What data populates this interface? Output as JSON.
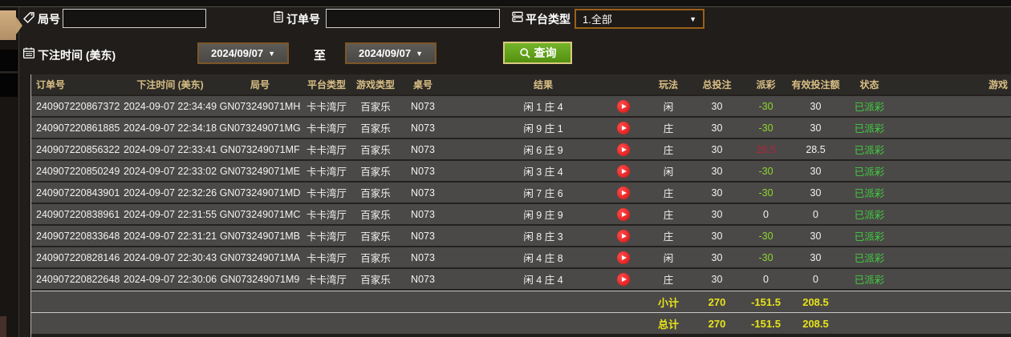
{
  "filters": {
    "round_label": "局号",
    "round_value": "",
    "order_label": "订单号",
    "order_value": "",
    "platform_label": "平台类型",
    "platform_value": "1.全部",
    "bet_time_label": "下注时间 (美东)",
    "date_from": "2024/09/07",
    "to_label": "至",
    "date_to": "2024/09/07",
    "query_label": "查询"
  },
  "table": {
    "headers": [
      "订单号",
      "下注时间 (美东)",
      "局号",
      "平台类型",
      "游戏类型",
      "桌号",
      "结果",
      "玩法",
      "总投注",
      "派彩",
      "有效投注额",
      "状态",
      "游戏"
    ],
    "rows": [
      {
        "order_no": "240907220867372",
        "bet_time": "2024-09-07 22:34:49",
        "round_no": "GN073249071MH",
        "platform": "卡卡湾厅",
        "game_type": "百家乐",
        "table_no": "N073",
        "result": "闲 1 庄 4",
        "play": "闲",
        "total_bet": "30",
        "payout": "-30",
        "payout_color": "green",
        "valid_bet": "30",
        "status": "已派彩"
      },
      {
        "order_no": "240907220861885",
        "bet_time": "2024-09-07 22:34:18",
        "round_no": "GN073249071MG",
        "platform": "卡卡湾厅",
        "game_type": "百家乐",
        "table_no": "N073",
        "result": "闲 9 庄 1",
        "play": "庄",
        "total_bet": "30",
        "payout": "-30",
        "payout_color": "green",
        "valid_bet": "30",
        "status": "已派彩"
      },
      {
        "order_no": "240907220856322",
        "bet_time": "2024-09-07 22:33:41",
        "round_no": "GN073249071MF",
        "platform": "卡卡湾厅",
        "game_type": "百家乐",
        "table_no": "N073",
        "result": "闲 6 庄 9",
        "play": "庄",
        "total_bet": "30",
        "payout": "28.5",
        "payout_color": "red",
        "valid_bet": "28.5",
        "status": "已派彩"
      },
      {
        "order_no": "240907220850249",
        "bet_time": "2024-09-07 22:33:02",
        "round_no": "GN073249071ME",
        "platform": "卡卡湾厅",
        "game_type": "百家乐",
        "table_no": "N073",
        "result": "闲 3 庄 4",
        "play": "闲",
        "total_bet": "30",
        "payout": "-30",
        "payout_color": "green",
        "valid_bet": "30",
        "status": "已派彩"
      },
      {
        "order_no": "240907220843901",
        "bet_time": "2024-09-07 22:32:26",
        "round_no": "GN073249071MD",
        "platform": "卡卡湾厅",
        "game_type": "百家乐",
        "table_no": "N073",
        "result": "闲 7 庄 6",
        "play": "庄",
        "total_bet": "30",
        "payout": "-30",
        "payout_color": "green",
        "valid_bet": "30",
        "status": "已派彩"
      },
      {
        "order_no": "240907220838961",
        "bet_time": "2024-09-07 22:31:55",
        "round_no": "GN073249071MC",
        "platform": "卡卡湾厅",
        "game_type": "百家乐",
        "table_no": "N073",
        "result": "闲 9 庄 9",
        "play": "庄",
        "total_bet": "30",
        "payout": "0",
        "payout_color": "white",
        "valid_bet": "0",
        "status": "已派彩"
      },
      {
        "order_no": "240907220833648",
        "bet_time": "2024-09-07 22:31:21",
        "round_no": "GN073249071MB",
        "platform": "卡卡湾厅",
        "game_type": "百家乐",
        "table_no": "N073",
        "result": "闲 8 庄 3",
        "play": "庄",
        "total_bet": "30",
        "payout": "-30",
        "payout_color": "green",
        "valid_bet": "30",
        "status": "已派彩"
      },
      {
        "order_no": "240907220828146",
        "bet_time": "2024-09-07 22:30:43",
        "round_no": "GN073249071MA",
        "platform": "卡卡湾厅",
        "game_type": "百家乐",
        "table_no": "N073",
        "result": "闲 4 庄 8",
        "play": "闲",
        "total_bet": "30",
        "payout": "-30",
        "payout_color": "green",
        "valid_bet": "30",
        "status": "已派彩"
      },
      {
        "order_no": "240907220822648",
        "bet_time": "2024-09-07 22:30:06",
        "round_no": "GN073249071M9",
        "platform": "卡卡湾厅",
        "game_type": "百家乐",
        "table_no": "N073",
        "result": "闲 4 庄 4",
        "play": "庄",
        "total_bet": "30",
        "payout": "0",
        "payout_color": "white",
        "valid_bet": "0",
        "status": "已派彩"
      }
    ],
    "subtotal": {
      "label": "小计",
      "total_bet": "270",
      "payout": "-151.5",
      "valid_bet": "208.5"
    },
    "total": {
      "label": "总计",
      "total_bet": "270",
      "payout": "-151.5",
      "valid_bet": "208.5"
    }
  },
  "colors": {
    "query_button_green": "#64a41c",
    "query_button_border": "#dbc97f",
    "payout_negative_green": "#8ed62f",
    "payout_positive_red": "#b3243c",
    "status_paid_green": "#41cc41",
    "summary_yellow": "#e8e41a",
    "header_text_tan": "#d9bf85",
    "date_select_border": "#7d5627",
    "platform_select_border": "#9c6018",
    "play_icon_red": "#e01d1d",
    "active_tab_tan": "#c7a379",
    "row_background": "#4b4947"
  }
}
